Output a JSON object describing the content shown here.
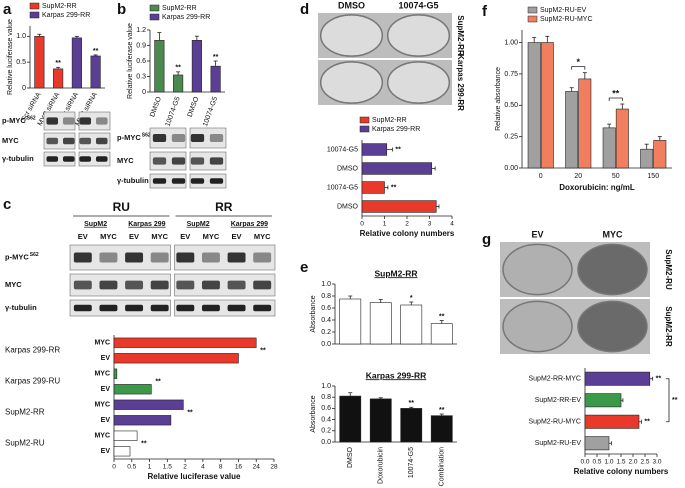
{
  "figure": {
    "panel_letters": [
      "a",
      "b",
      "c",
      "d",
      "e",
      "f",
      "g"
    ],
    "blots": [
      {
        "rows": [
          {
            "label": "p-MYC",
            "sup": "S62"
          },
          {
            "label": "MYC"
          },
          {
            "label": "γ-tubulin"
          }
        ]
      },
      {
        "rows": [
          {
            "label": "p-MYC",
            "sup": "S62"
          },
          {
            "label": "MYC"
          },
          {
            "label": "γ-tubulin"
          }
        ]
      },
      {
        "headers": [
          "RU",
          "RR"
        ],
        "cell_lines": [
          "SupM2",
          "Karpas 299",
          "SupM2",
          "Karpas 299"
        ],
        "lanes": [
          "EV",
          "MYC",
          "EV",
          "MYC",
          "EV",
          "MYC",
          "EV",
          "MYC"
        ],
        "rows": [
          {
            "label": "p-MYC",
            "sup": "S62"
          },
          {
            "label": "MYC"
          },
          {
            "label": "γ-tubulin"
          }
        ]
      }
    ],
    "plates": [
      {
        "columns": [
          "DMSO",
          "10074-G5"
        ],
        "rows": [
          "SupM2-RR",
          "Karpas 299-RR"
        ]
      },
      {
        "columns": [
          "EV",
          "MYC"
        ],
        "rows": [
          "SupM2-RU",
          "SupM2-RR"
        ]
      }
    ]
  },
  "chart_data": [
    {
      "type": "bar",
      "y_label": "Relative luciferase value",
      "legend": [
        {
          "name": "SupM2-RR",
          "color": "#e8392b"
        },
        {
          "name": "Karpas 299-RR",
          "color": "#5b3f95"
        }
      ],
      "categories": [
        "Scr siRNA",
        "MYC siRNA",
        "Scr siRNA",
        "MYC siRNA"
      ],
      "values": [
        1.0,
        0.37,
        0.97,
        0.62
      ],
      "errors": [
        0.04,
        0.03,
        0.03,
        0.02
      ],
      "colors": [
        "#e8392b",
        "#e8392b",
        "#5b3f95",
        "#5b3f95"
      ],
      "annotations": [
        null,
        "**",
        null,
        "**"
      ],
      "ylim": [
        0,
        1.2
      ],
      "yticks": [
        0,
        0.5,
        {
          "value": 1,
          "label": "1.0"
        }
      ]
    },
    {
      "type": "bar",
      "y_label": "Relative luciferase value",
      "legend": [
        {
          "name": "SupM2-RR",
          "color": "#4a8a4e"
        },
        {
          "name": "Karpas 299-RR",
          "color": "#5b3f95"
        }
      ],
      "categories": [
        "DMSO",
        "10074-G5",
        "DMSO",
        "10074-G5"
      ],
      "values": [
        1.0,
        0.33,
        1.0,
        0.5
      ],
      "errors": [
        0.15,
        0.06,
        0.08,
        0.1
      ],
      "colors": [
        "#4a8a4e",
        "#4a8a4e",
        "#5b3f95",
        "#5b3f95"
      ],
      "annotations": [
        null,
        "**",
        null,
        "**"
      ],
      "ylim": [
        0,
        1.2
      ],
      "yticks": [
        0,
        0.3,
        0.6,
        0.9,
        1.2
      ]
    },
    {
      "type": "hbar",
      "x_label": "Relative colony numbers",
      "legend": [
        {
          "name": "SupM2-RR",
          "color": "#e8392b"
        },
        {
          "name": "Karpas 299-RR",
          "color": "#5b3f95"
        }
      ],
      "categories": [
        "10074-G5",
        "DMSO",
        "10074-G5",
        "DMSO"
      ],
      "values": [
        1.1,
        3.1,
        1.0,
        3.3
      ],
      "errors": [
        0.25,
        0.15,
        0.15,
        0.12
      ],
      "colors": [
        "#5b3f95",
        "#5b3f95",
        "#e8392b",
        "#e8392b"
      ],
      "annotations": [
        "**",
        null,
        "**",
        null
      ],
      "xlim": [
        0,
        4
      ],
      "xticks": [
        0,
        1,
        2,
        3,
        4
      ]
    },
    {
      "type": "bar",
      "y_label": "Relative absorbance",
      "x_label": "Doxorubicin: ng/mL",
      "categories": [
        "0",
        "20",
        "50",
        "150"
      ],
      "series": [
        {
          "name": "SupM2-RU-EV",
          "color": "#a0a0a0",
          "values": [
            1.0,
            0.61,
            0.32,
            0.15
          ],
          "errors": [
            0.04,
            0.03,
            0.03,
            0.04
          ]
        },
        {
          "name": "SupM2-RU-MYC",
          "color": "#f07e5f",
          "values": [
            1.0,
            0.71,
            0.47,
            0.22
          ],
          "errors": [
            0.05,
            0.05,
            0.04,
            0.03
          ]
        }
      ],
      "annotations": [
        null,
        "*",
        "**",
        null
      ],
      "ylim": [
        0,
        1.1
      ],
      "yticks": [
        {
          "value": 0,
          "label": "0.00"
        },
        {
          "value": 0.25,
          "label": "0.25"
        },
        {
          "value": 0.5,
          "label": "0.50"
        },
        {
          "value": 0.75,
          "label": "0.75"
        },
        {
          "value": 1,
          "label": "1.00"
        }
      ]
    },
    {
      "type": "hbar",
      "x_label": "Relative luciferase value",
      "groups": [
        {
          "name": "Karpas 299-RR",
          "color": "#e8392b",
          "categories": [
            "MYC",
            "EV"
          ],
          "values": [
            24,
            16
          ],
          "annotation": "**"
        },
        {
          "name": "Karpas 299-RU",
          "color": "#3a9a4a",
          "categories": [
            "MYC",
            "EV"
          ],
          "values": [
            0.08,
            1.05
          ],
          "annotation": "**"
        },
        {
          "name": "SupM2-RR",
          "color": "#5b3f95",
          "categories": [
            "MYC",
            "EV"
          ],
          "values": [
            1.95,
            1.6
          ],
          "annotation": "**"
        },
        {
          "name": "SupM2-RU",
          "color": "#ffffff",
          "categories": [
            "MYC",
            "EV"
          ],
          "values": [
            0.65,
            0.45
          ],
          "annotation": "**"
        }
      ],
      "xlim": [
        0,
        28
      ],
      "xticks": [
        0,
        0.5,
        1,
        1.5,
        2,
        4,
        8,
        16,
        24,
        28
      ]
    },
    {
      "type": "bar",
      "title": "SupM2-RR",
      "y_label": "Absorbance",
      "values": [
        0.75,
        0.69,
        0.65,
        0.34
      ],
      "errors": [
        0.05,
        0.05,
        0.05,
        0.05
      ],
      "color": "#ffffff",
      "annotations": [
        null,
        null,
        "*",
        "**"
      ],
      "ylim": [
        0,
        1.0
      ],
      "yticks": [
        {
          "value": 0,
          "label": "0.0"
        },
        0.2,
        0.4,
        0.6,
        0.8,
        {
          "value": 1,
          "label": "1.0"
        }
      ]
    },
    {
      "type": "bar",
      "title": "Karpas 299-RR",
      "y_label": "Absorbance",
      "categories": [
        "DMSO",
        "Doxorubicin",
        "10074-G5",
        "Combination"
      ],
      "values": [
        0.82,
        0.77,
        0.6,
        0.47
      ],
      "errors": [
        0.06,
        0.02,
        0.02,
        0.03
      ],
      "color": "#111111",
      "annotations": [
        null,
        null,
        "**",
        "**"
      ],
      "ylim": [
        0,
        1.0
      ],
      "yticks": [
        {
          "value": 0,
          "label": "0.0"
        },
        0.2,
        0.4,
        0.6,
        0.8,
        {
          "value": 1,
          "label": "1.0"
        }
      ]
    },
    {
      "type": "hbar",
      "x_label": "Relative colony numbers",
      "categories": [
        "SupM2-RR-MYC",
        "SupM2-RR-EV",
        "SupM2-RU-MYC",
        "SupM2-RU-EV"
      ],
      "values": [
        2.7,
        1.5,
        2.25,
        1.0
      ],
      "errors": [
        0.12,
        0.08,
        0.1,
        0.1
      ],
      "colors": [
        "#5b3f95",
        "#3a9a4a",
        "#e8392b",
        "#a0a0a0"
      ],
      "annotations": [
        "**",
        null,
        "**",
        null
      ],
      "bracket": "**",
      "xlim": [
        0,
        3
      ],
      "xticks": [
        {
          "value": 0,
          "label": "0.0"
        },
        0.5,
        {
          "value": 1,
          "label": "1.0"
        },
        1.5,
        {
          "value": 2,
          "label": "2.0"
        },
        2.5,
        {
          "value": 3,
          "label": "3.0"
        }
      ]
    }
  ]
}
